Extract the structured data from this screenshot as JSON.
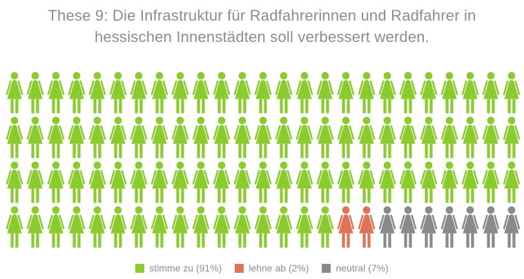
{
  "title": {
    "text": "These 9: Die Infrastruktur für Radfahrerinnen und Radfahrer in hessischen Innenstädten soll verbessert werden.",
    "line1": "These 9: Die Infrastruktur für Radfahrerinnen und Radfahrer in",
    "line2": "hessischen Innenstädten soll verbessert werden."
  },
  "chart_data": {
    "type": "pictogram",
    "title": "These 9: Die Infrastruktur für Radfahrerinnen und Radfahrer in hessischen Innenstädten soll verbessert werden.",
    "icon": "woman-figure",
    "icon_unit_pct": 1,
    "total_icons": 100,
    "rows": 4,
    "icons_per_row": 25,
    "fill_order": "row-major-left-to-right",
    "series": [
      {
        "name": "stimme zu",
        "value_pct": 91,
        "icon_count": 91,
        "color": "#8BCB2F",
        "legend_label": "stimme zu (91%)"
      },
      {
        "name": "lehne ab",
        "value_pct": 2,
        "icon_count": 2,
        "color": "#DF7355",
        "legend_label": "lehne ab (2%)"
      },
      {
        "name": "neutral",
        "value_pct": 7,
        "icon_count": 7,
        "color": "#8A8A8A",
        "legend_label": "neutral (7%)"
      }
    ],
    "legend_position": "bottom-center"
  },
  "colors": {
    "background": "#FFFFFF",
    "title_text": "#8C8C8C",
    "legend_text": "#8C8C8C"
  }
}
